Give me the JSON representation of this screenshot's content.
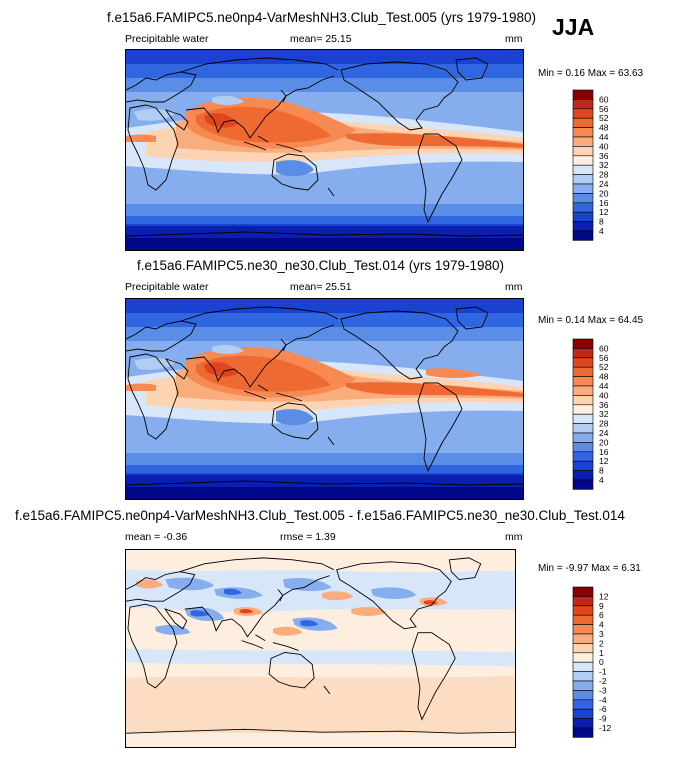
{
  "season": "JJA",
  "panels": [
    {
      "title": "f.e15a6.FAMIPC5.ne0np4-VarMeshNH3.Club_Test.005 (yrs 1979-1980)",
      "left_label": "Precipitable water",
      "center_label": "mean=  25.15",
      "units": "mm",
      "minmax": "Min =   0.16 Max =  63.63",
      "type": "field"
    },
    {
      "title": "f.e15a6.FAMIPC5.ne30_ne30.Club_Test.014 (yrs 1979-1980)",
      "left_label": "Precipitable water",
      "center_label": "mean=  25.51",
      "units": "mm",
      "minmax": "Min =   0.14 Max =  64.45",
      "type": "field"
    },
    {
      "title": "f.e15a6.FAMIPC5.ne0np4-VarMeshNH3.Club_Test.005 - f.e15a6.FAMIPC5.ne30_ne30.Club_Test.014",
      "left_label": "mean =  -0.36",
      "center_label": "rmse =  1.39",
      "units": "mm",
      "minmax": "Min =  -9.97 Max =   6.31",
      "type": "diff"
    }
  ],
  "colorbars": {
    "field": {
      "labels": [
        "60",
        "56",
        "52",
        "48",
        "44",
        "40",
        "36",
        "32",
        "28",
        "24",
        "20",
        "16",
        "12",
        "8",
        "4"
      ],
      "colors": [
        "#8b0000",
        "#c1271b",
        "#e0451e",
        "#ef6a32",
        "#f68a52",
        "#f9ad7c",
        "#fcd3b3",
        "#fdeedf",
        "#d7e6f8",
        "#b1cdf2",
        "#86aded",
        "#5a8ee6",
        "#3067e0",
        "#1a42d0",
        "#0a1fad",
        "#00088a"
      ]
    },
    "diff": {
      "labels": [
        "12",
        "9",
        "6",
        "4",
        "3",
        "2",
        "1",
        "0",
        "-1",
        "-2",
        "-3",
        "-4",
        "-6",
        "-9",
        "-12"
      ],
      "colors": [
        "#8b0000",
        "#c1271b",
        "#e0451e",
        "#ef6a32",
        "#f68a52",
        "#f9ad7c",
        "#fcd3b3",
        "#fdeedf",
        "#d7e6f8",
        "#b1cdf2",
        "#86aded",
        "#5a8ee6",
        "#3067e0",
        "#1a42d0",
        "#0a1fad",
        "#00088a"
      ]
    }
  }
}
